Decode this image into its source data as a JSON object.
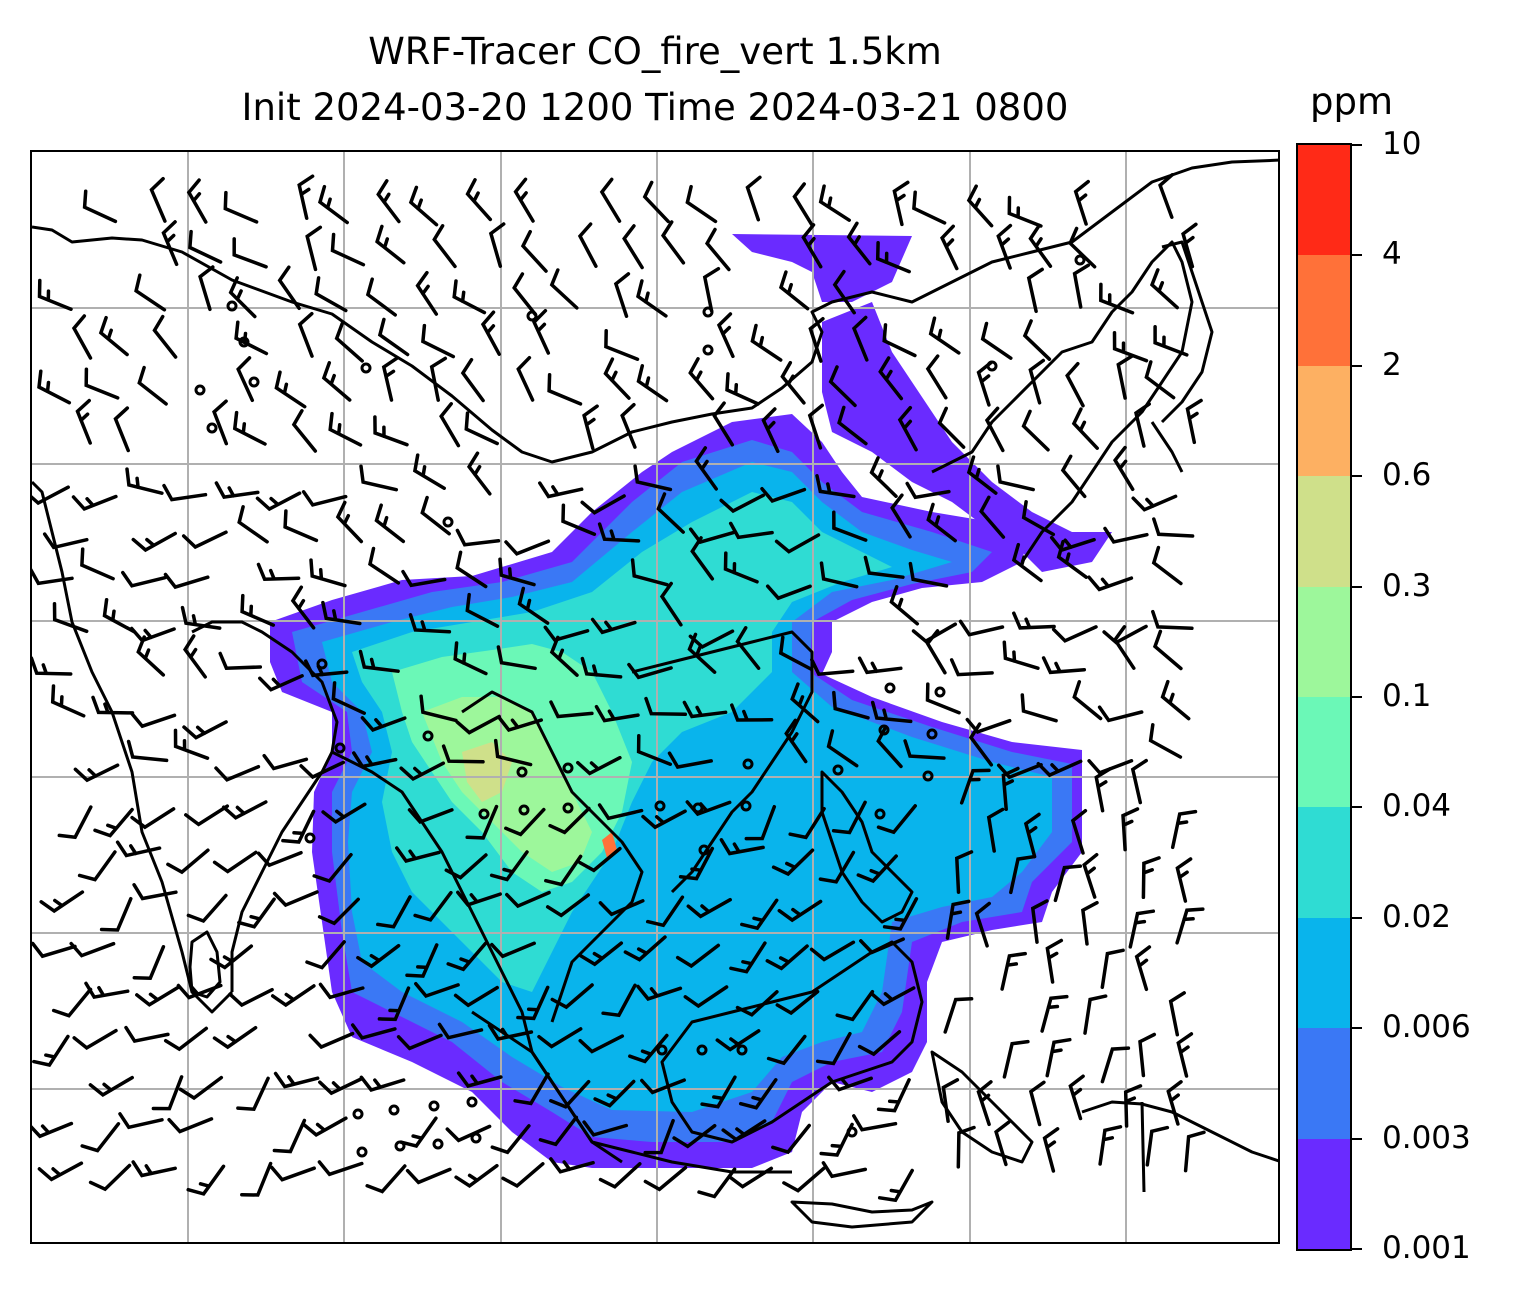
{
  "title": {
    "line1": "WRF-Tracer CO_fire_vert 1.5km",
    "line2": "Init 2024-03-20 1200 Time 2024-03-21 0800"
  },
  "colorbar": {
    "unit": "ppm",
    "levels": [
      "0.001",
      "0.003",
      "0.006",
      "0.02",
      "0.04",
      "0.1",
      "0.3",
      "0.6",
      "2",
      "4",
      "10"
    ],
    "colors": [
      "#6a2bff",
      "#3a78f5",
      "#09b4ec",
      "#2fdcd3",
      "#6bf8b7",
      "#9df79b",
      "#cfe08a",
      "#fdb062",
      "#ff7139",
      "#ff2a17"
    ]
  },
  "map": {
    "gridlines": "on",
    "coastline_color": "#000000",
    "gridline_color": "#b0b0b0"
  }
}
